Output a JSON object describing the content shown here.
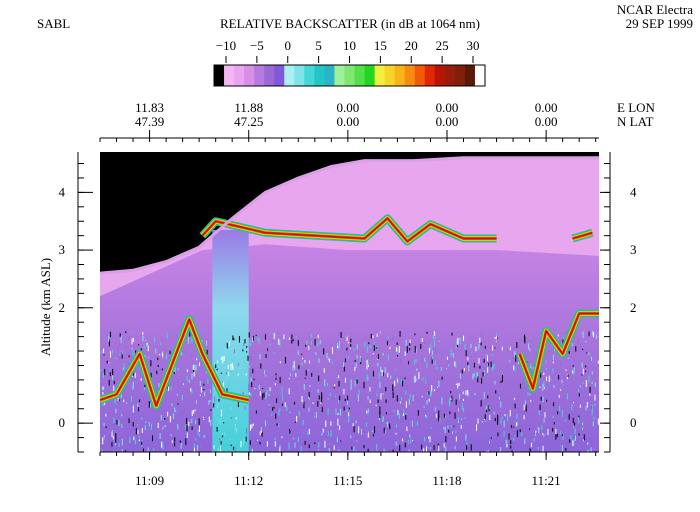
{
  "header": {
    "left_label": "SABL",
    "title": "RELATIVE BACKSCATTER (in dB at 1064 nm)",
    "platform": "NCAR Electra",
    "date": "29 SEP 1999"
  },
  "colorbar": {
    "tick_labels": [
      "−10",
      "−5",
      "0",
      "5",
      "10",
      "15",
      "20",
      "25",
      "30"
    ],
    "colors": [
      "#000000",
      "#f2b6f2",
      "#eaa4f0",
      "#d98ee8",
      "#b77ae0",
      "#9b68d8",
      "#8058d8",
      "#aaf0f0",
      "#7ee4ea",
      "#44d6d8",
      "#22c6c6",
      "#2cb4c4",
      "#9ef09a",
      "#7ee872",
      "#52e04c",
      "#22d622",
      "#f0f040",
      "#f8d428",
      "#f8b418",
      "#f88c10",
      "#f05a08",
      "#e02806",
      "#b81408",
      "#981e0c",
      "#80200a",
      "#5a1806",
      "#ffffff"
    ]
  },
  "coordinates": {
    "lon": [
      "11.83",
      "11.88",
      "0.00",
      "0.00",
      "0.00"
    ],
    "lat": [
      "47.39",
      "47.25",
      "0.00",
      "0.00",
      "0.00"
    ],
    "lon_label": "E  LON",
    "lat_label": "N  LAT"
  },
  "chart_data": {
    "type": "heatmap",
    "title": "RELATIVE BACKSCATTER (in dB at 1064 nm)",
    "ylabel": "Altitude (km ASL)",
    "xlabel": "",
    "x_tick_labels": [
      "11:09",
      "11:12",
      "11:15",
      "11:18",
      "11:21"
    ],
    "x_ticks_min": [
      9,
      12,
      15,
      18,
      21
    ],
    "xlim_min": [
      7.5,
      22.6
    ],
    "y_ticks": [
      0,
      2,
      3,
      4
    ],
    "y_tick_labels": [
      "0",
      "2",
      "3",
      "4"
    ],
    "ylim_km": [
      -0.5,
      4.7
    ],
    "colorbar_range_db": [
      -10,
      30
    ],
    "aircraft_altitude_km": [
      [
        7.5,
        2.6
      ],
      [
        8.5,
        2.65
      ],
      [
        9.5,
        2.8
      ],
      [
        10.5,
        3.05
      ],
      [
        11.1,
        3.35
      ],
      [
        11.5,
        3.55
      ],
      [
        12.5,
        4.0
      ],
      [
        13.5,
        4.25
      ],
      [
        14.5,
        4.45
      ],
      [
        15.5,
        4.55
      ],
      [
        17.0,
        4.55
      ],
      [
        18.5,
        4.6
      ],
      [
        20.0,
        4.6
      ],
      [
        22.6,
        4.6
      ]
    ],
    "aerosol_layer_top_km": [
      [
        10.6,
        3.25
      ],
      [
        11.0,
        3.5
      ],
      [
        12.5,
        3.3
      ],
      [
        14.0,
        3.25
      ],
      [
        15.5,
        3.2
      ],
      [
        16.2,
        3.55
      ],
      [
        16.8,
        3.15
      ],
      [
        17.5,
        3.45
      ],
      [
        18.5,
        3.2
      ],
      [
        19.5,
        3.2
      ]
    ],
    "boundary_layer_top_km": [
      [
        7.5,
        0.4
      ],
      [
        8.0,
        0.5
      ],
      [
        8.7,
        1.2
      ],
      [
        9.2,
        0.3
      ],
      [
        10.2,
        1.8
      ],
      [
        10.6,
        1.2
      ],
      [
        11.2,
        0.5
      ],
      [
        12.0,
        0.4
      ],
      [
        20.2,
        1.2
      ],
      [
        20.6,
        0.6
      ],
      [
        21.0,
        1.6
      ],
      [
        21.5,
        1.2
      ],
      [
        22.0,
        1.9
      ],
      [
        22.6,
        1.9
      ]
    ]
  }
}
